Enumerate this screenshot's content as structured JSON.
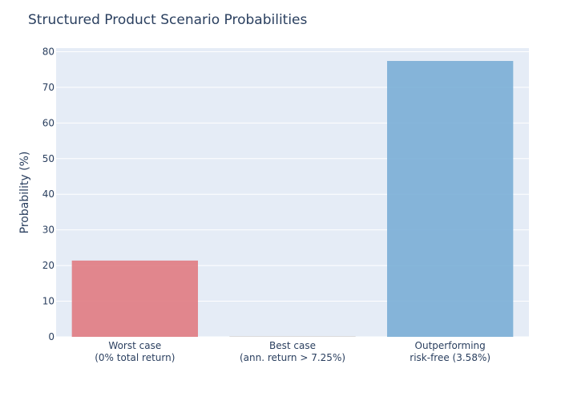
{
  "chart_data": {
    "type": "bar",
    "title": "Structured Product Scenario Probabilities",
    "xlabel": "",
    "ylabel": "Probability (%)",
    "ylim": [
      0,
      81
    ],
    "yticks": [
      0,
      10,
      20,
      30,
      40,
      50,
      60,
      70,
      80
    ],
    "grid": true,
    "categories": [
      [
        "Worst case",
        "(0% total return)"
      ],
      [
        "Best case",
        "(ann. return > 7.25%)"
      ],
      [
        "Outperforming",
        "risk-free (3.58%)"
      ]
    ],
    "values": [
      21.4,
      0.0,
      77.4
    ],
    "colors": [
      "#e07b82",
      "#d8d8d8",
      "#7aaed6"
    ],
    "plot_background": "#e5ecf6",
    "grid_color": "#ffffff",
    "text_color": "#2a3f5f"
  }
}
